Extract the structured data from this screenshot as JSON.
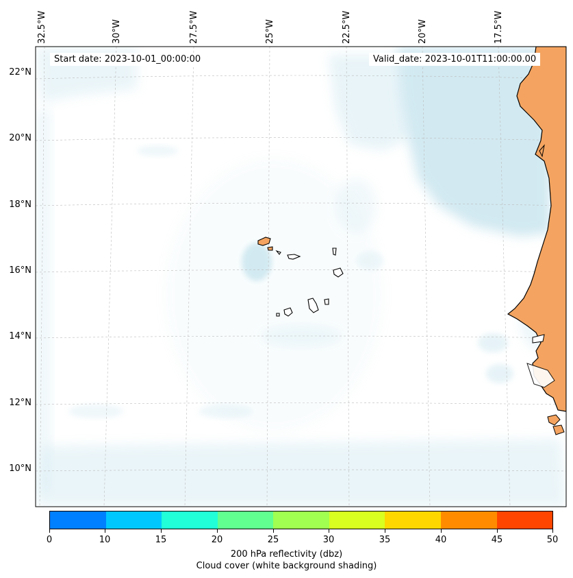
{
  "map": {
    "longitude_labels": [
      "32.5°W",
      "30°W",
      "27.5°W",
      "25°W",
      "22.5°W",
      "20°W",
      "17.5°W"
    ],
    "latitude_labels": [
      "22°N",
      "20°N",
      "18°N",
      "16°N",
      "14°N",
      "12°N",
      "10°N"
    ],
    "start_date": "Start date: 2023-10-01_00:00:00",
    "valid_date": "Valid_date: 2023-10-01T11:00:00.00",
    "colors": {
      "land": "#f4a460",
      "cloud": "#add8e6",
      "coast": "#000000",
      "grid": "#bbbbbb"
    }
  },
  "colorbar": {
    "ticks": [
      "0",
      "10",
      "15",
      "20",
      "25",
      "30",
      "35",
      "40",
      "45",
      "50"
    ],
    "colors": [
      "#0080ff",
      "#00c8ff",
      "#20ffd8",
      "#60ff90",
      "#a0ff50",
      "#d8ff20",
      "#ffd700",
      "#ff8c00",
      "#ff4500"
    ],
    "label": "200 hPa reflectivity (dbz)",
    "sublabel": "Cloud cover (white background shading)"
  }
}
